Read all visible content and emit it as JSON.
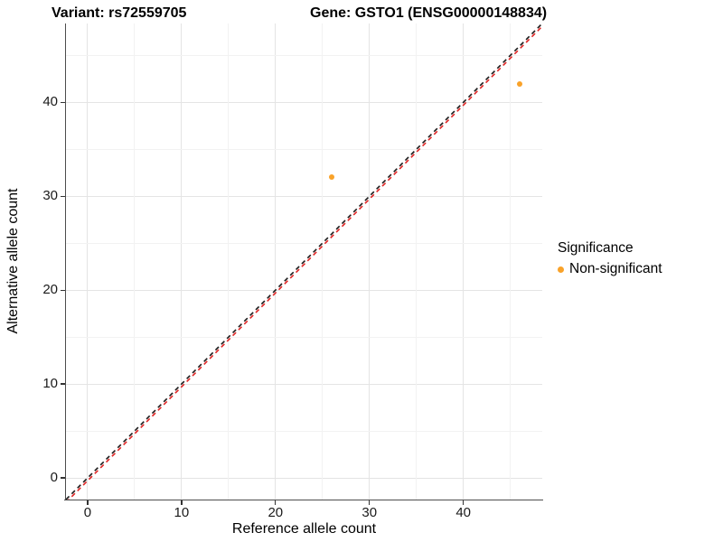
{
  "titles": {
    "variant": "Variant: rs72559705",
    "gene": "Gene: GSTO1 (ENSG00000148834)"
  },
  "chart_data": {
    "type": "scatter",
    "xlabel": "Reference allele count",
    "ylabel": "Alternative allele count",
    "xlim": [
      -2.3,
      48.4
    ],
    "ylim": [
      -2.3,
      48.4
    ],
    "xticks": [
      0,
      10,
      20,
      30,
      40
    ],
    "yticks": [
      0,
      10,
      20,
      30,
      40
    ],
    "xticks_minor": [
      5,
      15,
      25,
      35,
      45
    ],
    "yticks_minor": [
      5,
      15,
      25,
      35,
      45
    ],
    "grid": true,
    "points": [
      {
        "x": 26,
        "y": 32,
        "series": "Non-significant"
      },
      {
        "x": 46,
        "y": 42,
        "series": "Non-significant"
      }
    ],
    "lines": [
      {
        "name": "identity-line",
        "style": "dashed",
        "color": "#1a1a1a",
        "slope": 1,
        "intercept": 0
      },
      {
        "name": "expected-ratio-line",
        "style": "dashed",
        "color": "#e02424",
        "slope": 1,
        "intercept": -0.3
      }
    ],
    "legend": {
      "title": "Significance",
      "position": "right",
      "entries": [
        {
          "label": "Non-significant",
          "color": "#F9A229"
        }
      ]
    },
    "point_color": "#F9A229"
  }
}
